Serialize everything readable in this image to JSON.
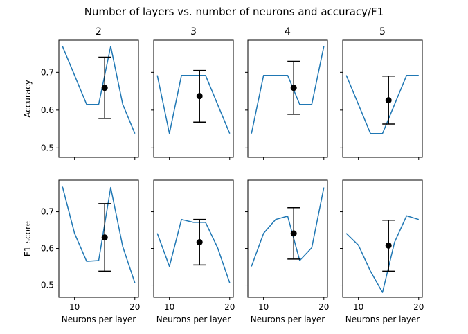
{
  "figure_title": "Number of layers vs. number of neurons and accuracy/F1",
  "colors": {
    "line": "#1f77b4",
    "marker": "#000000",
    "axes": "#000000"
  },
  "chart_data": {
    "type": "line",
    "layout": "2x4 subplot grid, shared x and y axes per row",
    "columns": [
      "2",
      "3",
      "4",
      "5"
    ],
    "xlabel": "Neurons per layer",
    "xlim": [
      7.4,
      20.6
    ],
    "xticks": [
      10,
      20
    ],
    "x": [
      8,
      10,
      12,
      14,
      16,
      18,
      20
    ],
    "grid": false,
    "rows": [
      {
        "metric": "accuracy",
        "ylabel": "Accuracy",
        "ylim": [
          0.475,
          0.785
        ],
        "yticks": [
          "0.5",
          "0.6",
          "0.7"
        ],
        "ytick_values": [
          0.5,
          0.6,
          0.7
        ],
        "panels": [
          {
            "title": "2",
            "values": [
              0.769,
              0.692,
              0.615,
              0.615,
              0.769,
              0.615,
              0.538
            ],
            "mean": 0.659,
            "err_low": 0.578,
            "err_high": 0.74,
            "mean_x": 15
          },
          {
            "title": "3",
            "values": [
              0.692,
              0.538,
              0.692,
              0.692,
              0.692,
              0.615,
              0.538
            ],
            "mean": 0.637,
            "err_low": 0.568,
            "err_high": 0.705,
            "mean_x": 15
          },
          {
            "title": "4",
            "values": [
              0.538,
              0.692,
              0.692,
              0.692,
              0.615,
              0.615,
              0.769
            ],
            "mean": 0.659,
            "err_low": 0.589,
            "err_high": 0.729,
            "mean_x": 15
          },
          {
            "title": "5",
            "values": [
              0.692,
              0.615,
              0.538,
              0.538,
              0.615,
              0.692,
              0.692
            ],
            "mean": 0.626,
            "err_low": 0.563,
            "err_high": 0.69,
            "mean_x": 15
          }
        ]
      },
      {
        "metric": "f1",
        "ylabel": "F1-score",
        "ylim": [
          0.467,
          0.786
        ],
        "yticks": [
          "0.5",
          "0.6",
          "0.7"
        ],
        "ytick_values": [
          0.5,
          0.6,
          0.7
        ],
        "panels": [
          {
            "title": "2",
            "values": [
              0.768,
              0.641,
              0.565,
              0.567,
              0.766,
              0.605,
              0.506
            ],
            "mean": 0.63,
            "err_low": 0.538,
            "err_high": 0.722,
            "mean_x": 15
          },
          {
            "title": "3",
            "values": [
              0.641,
              0.551,
              0.679,
              0.671,
              0.671,
              0.602,
              0.506
            ],
            "mean": 0.617,
            "err_low": 0.555,
            "err_high": 0.679,
            "mean_x": 15
          },
          {
            "title": "4",
            "values": [
              0.551,
              0.641,
              0.679,
              0.688,
              0.567,
              0.602,
              0.766
            ],
            "mean": 0.641,
            "err_low": 0.571,
            "err_high": 0.711,
            "mean_x": 15
          },
          {
            "title": "5",
            "values": [
              0.641,
              0.609,
              0.538,
              0.48,
              0.617,
              0.689,
              0.679
            ],
            "mean": 0.608,
            "err_low": 0.538,
            "err_high": 0.677,
            "mean_x": 15
          }
        ]
      }
    ]
  }
}
